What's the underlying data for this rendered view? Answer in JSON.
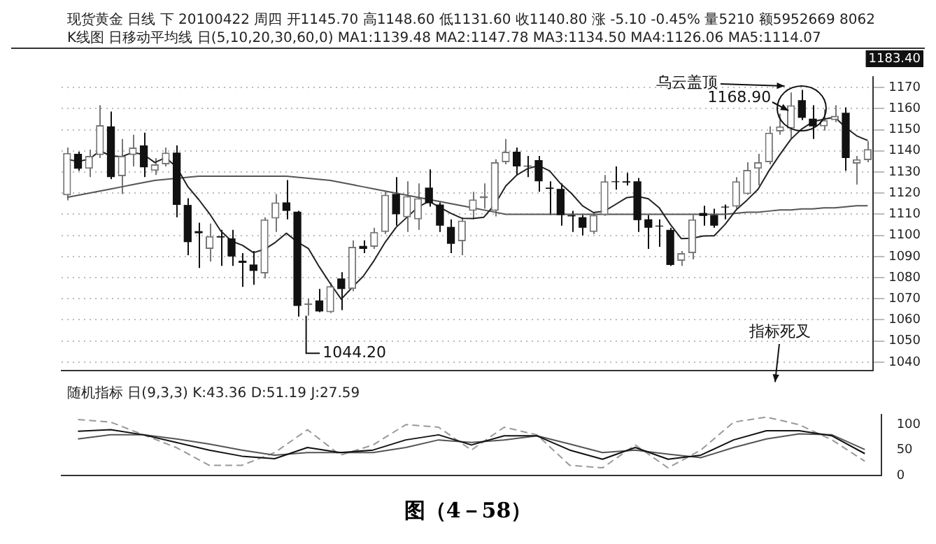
{
  "chart_data": [
    {
      "type": "candlestick",
      "title": "现货黄金 日线 下 20100422 周四 开1145.70 高1148.60 低1131.60 收1140.80 涨 -5.10 -0.45% 量5210 额5952669 8062",
      "subtitle": "K线图 日移动平均线 日(5,10,20,30,60,0) MA1:1139.48 MA2:1147.78 MA3:1134.50 MA4:1126.06 MA5:1114.07",
      "colors": [
        "#777777",
        "#111111",
        "#777777",
        "#777777",
        "#111111",
        "#777777",
        "#777777",
        "#111111",
        "#777777",
        "#777777",
        "#111111",
        "#111111",
        "#111111",
        "#777777",
        "#111111",
        "#111111",
        "#111111",
        "#111111",
        "#777777",
        "#777777",
        "#111111",
        "#111111",
        "#777777",
        "#111111",
        "#777777",
        "#111111",
        "#777777",
        "#111111",
        "#777777",
        "#777777",
        "#111111",
        "#777777",
        "#777777",
        "#111111",
        "#111111",
        "#111111",
        "#777777",
        "#777777",
        "#777777",
        "#777777",
        "#777777",
        "#111111",
        "#111111",
        "#111111",
        "#111111",
        "#111111",
        "#111111",
        "#111111",
        "#777777",
        "#777777",
        "#111111",
        "#111111",
        "#111111",
        "#111111",
        "#111111",
        "#111111",
        "#777777",
        "#777777",
        "#111111",
        "#111111",
        "#111111",
        "#777777",
        "#777777",
        "#777777",
        "#777777",
        "#777777",
        "#777777",
        "#111111",
        "#111111",
        "#777777",
        "#777777",
        "#111111",
        "#777777",
        "#777777"
      ],
      "categories": [
        null,
        null,
        null,
        null,
        null,
        null,
        null,
        null,
        null,
        null,
        null,
        null,
        null,
        null,
        null,
        null,
        null,
        null,
        null,
        null,
        null,
        null,
        null,
        null,
        null,
        null,
        null,
        null,
        null,
        null,
        null,
        null,
        null,
        null,
        null,
        null,
        null,
        null,
        null,
        null,
        null,
        null,
        null,
        null,
        null,
        null,
        null,
        null,
        null,
        null,
        null,
        null,
        null,
        null,
        null,
        null,
        null,
        null,
        null,
        null,
        null,
        null,
        null,
        null,
        null,
        null,
        null,
        null,
        null,
        null,
        null,
        null,
        null,
        null
      ],
      "ohlc": [
        [
          1119,
          1141.6,
          1116.6,
          1139
        ],
        [
          1138.6,
          1139.6,
          1130.6,
          1131.6
        ],
        [
          1131.6,
          1140.6,
          1127.6,
          1137.6
        ],
        [
          1138,
          1161.6,
          1136.6,
          1152.2
        ],
        [
          1151.6,
          1158.6,
          1126.6,
          1127.6
        ],
        [
          1128,
          1145.6,
          1119.6,
          1137.6
        ],
        [
          1138,
          1147.6,
          1132.6,
          1141.6
        ],
        [
          1142.6,
          1148.6,
          1127.6,
          1132.2
        ],
        [
          1130.6,
          1136.6,
          1128.6,
          1133.6
        ],
        [
          1133.6,
          1141.6,
          1132.6,
          1139.2
        ],
        [
          1139.2,
          1142.6,
          1108.6,
          1114.4
        ],
        [
          1114.4,
          1117.6,
          1090.6,
          1096.8
        ],
        [
          1102,
          1106,
          1084.6,
          1101
        ],
        [
          1093.6,
          1105.6,
          1087.6,
          1099.6
        ],
        [
          1099.6,
          1102.6,
          1085.6,
          1099
        ],
        [
          1098.6,
          1102.6,
          1085.6,
          1090
        ],
        [
          1088,
          1091.6,
          1075.6,
          1087
        ],
        [
          1086.2,
          1092.6,
          1076.6,
          1083.2
        ],
        [
          1082,
          1108.6,
          1079.6,
          1107.6
        ],
        [
          1108,
          1119.6,
          1101.6,
          1115.6
        ],
        [
          1115.6,
          1126.2,
          1107.6,
          1111.6
        ],
        [
          1111.2,
          1111.6,
          1061.6,
          1066.6
        ],
        [
          1067,
          1070,
          1062,
          1067.8
        ],
        [
          1069.2,
          1074.6,
          1063.6,
          1064
        ],
        [
          1063.6,
          1077.6,
          1063.2,
          1076
        ],
        [
          1079.6,
          1082.6,
          1064.6,
          1074.6
        ],
        [
          1074.6,
          1097.6,
          1073.6,
          1094.6
        ],
        [
          1095,
          1097.6,
          1091.6,
          1093.6
        ],
        [
          1094.6,
          1103.6,
          1093.6,
          1101.6
        ],
        [
          1101.6,
          1120.6,
          1100.6,
          1119.2
        ],
        [
          1119.6,
          1127.6,
          1104.6,
          1110
        ],
        [
          1108.6,
          1125.6,
          1101.6,
          1118.6
        ],
        [
          1107.6,
          1124.6,
          1102.6,
          1117.6
        ],
        [
          1122.6,
          1131.2,
          1113.6,
          1115.2
        ],
        [
          1114.6,
          1115.6,
          1101.6,
          1104.6
        ],
        [
          1104,
          1107.6,
          1091.6,
          1096
        ],
        [
          1097.2,
          1108.6,
          1090.6,
          1107
        ],
        [
          1111.6,
          1120.6,
          1107.6,
          1117
        ],
        [
          1117.6,
          1124.6,
          1112.6,
          1118.6
        ],
        [
          1111.6,
          1136,
          1109,
          1134.6
        ],
        [
          1134.6,
          1145.6,
          1133.6,
          1139.6
        ],
        [
          1139.6,
          1141.6,
          1128.6,
          1132.6
        ],
        [
          1133,
          1137.6,
          1127.6,
          1132.6
        ],
        [
          1135.6,
          1137.6,
          1120.6,
          1125.6
        ],
        [
          1122.6,
          1125.6,
          1109.6,
          1122
        ],
        [
          1122,
          1124.6,
          1104.6,
          1109.6
        ],
        [
          1109.6,
          1111.6,
          1101.6,
          1109
        ],
        [
          1108.6,
          1109.6,
          1100,
          1103.6
        ],
        [
          1101.6,
          1110.6,
          1100.6,
          1109.6
        ],
        [
          1109.6,
          1128.6,
          1109.2,
          1125.6
        ],
        [
          1125.6,
          1132.6,
          1121.6,
          1125.2
        ],
        [
          1125.6,
          1129.6,
          1123.6,
          1125
        ],
        [
          1125.6,
          1127.2,
          1101.6,
          1107.2
        ],
        [
          1107.6,
          1109.6,
          1093.6,
          1103.6
        ],
        [
          1104.6,
          1107.6,
          1094.6,
          1104.2
        ],
        [
          1102.6,
          1103.6,
          1085.6,
          1086
        ],
        [
          1088,
          1092.6,
          1085.6,
          1091.6
        ],
        [
          1091.6,
          1109.6,
          1088.6,
          1107.6
        ],
        [
          1110.6,
          1114,
          1104.6,
          1109.2
        ],
        [
          1109.6,
          1112.6,
          1103.6,
          1104.6
        ],
        [
          1113.6,
          1114.6,
          1107.6,
          1113.2
        ],
        [
          1113.6,
          1127.6,
          1112.6,
          1125.6
        ],
        [
          1119.6,
          1134.6,
          1119.2,
          1131
        ],
        [
          1131.6,
          1138.6,
          1123.6,
          1134.6
        ],
        [
          1134.6,
          1151.6,
          1133.6,
          1148.6
        ],
        [
          1149.2,
          1157.6,
          1147.6,
          1151.6
        ],
        [
          1150.6,
          1167.6,
          1145.6,
          1161.6
        ],
        [
          1164,
          1168.9,
          1154.6,
          1155.6
        ],
        [
          1155.2,
          1161.6,
          1145.6,
          1151.6
        ],
        [
          1151.6,
          1159.6,
          1149.6,
          1154.6
        ],
        [
          1154.6,
          1161.6,
          1153.6,
          1156.6
        ],
        [
          1158,
          1160.6,
          1130.6,
          1136.6
        ],
        [
          1134,
          1137.6,
          1124,
          1136
        ],
        [
          1135.6,
          1144.6,
          1134.6,
          1140.8
        ]
      ],
      "series": [
        {
          "type": "line",
          "color": "#222222",
          "values": [
            1136,
            1135,
            1136,
            1140,
            1137.6,
            1137.3,
            1139.3,
            1138.2,
            1134.5,
            1136.8,
            1132.2,
            1123.2,
            1117,
            1110.2,
            1102.2,
            1097.3,
            1095.3,
            1091.8,
            1093.4,
            1096.7,
            1101,
            1096.9,
            1093.8,
            1085.1,
            1077.2,
            1069.8,
            1075.4,
            1080.6,
            1088.1,
            1096.7,
            1103.8,
            1108.6,
            1113.4,
            1116.1,
            1113.2,
            1110.4,
            1108.1,
            1108,
            1108.6,
            1114.6,
            1123.4,
            1128.5,
            1131.6,
            1133,
            1130.5,
            1124.5,
            1119.8,
            1114,
            1110.8,
            1111.5,
            1114.6,
            1117.8,
            1118.5,
            1117.3,
            1113,
            1105.2,
            1098.5,
            1098.6,
            1099.7,
            1099.8,
            1105.2,
            1112,
            1116.7,
            1121.8,
            1130.6,
            1138.3,
            1145.5,
            1150.4,
            1153.8,
            1155,
            1156,
            1151,
            1147.1,
            1144.9
          ]
        },
        {
          "type": "line",
          "color": "#555555",
          "values": [
            1118,
            1119,
            1120,
            1121,
            1122,
            1123,
            1124,
            1125,
            1126,
            1126.5,
            1127,
            1127.5,
            1128,
            1128,
            1128,
            1128,
            1128,
            1128,
            1128,
            1128,
            1128,
            1127.5,
            1127,
            1126.5,
            1126,
            1125,
            1124,
            1123,
            1122,
            1121,
            1120,
            1119,
            1118,
            1117,
            1116,
            1115,
            1114,
            1113,
            1112,
            1111,
            1110,
            1110,
            1110,
            1110,
            1110,
            1110,
            1110,
            1110,
            1110,
            1110,
            1110,
            1110,
            1110,
            1110,
            1110,
            1110,
            1110,
            1110,
            1110,
            1110,
            1110,
            1110.5,
            1111,
            1111,
            1111.5,
            1112,
            1112,
            1112.5,
            1112.5,
            1113,
            1113,
            1113.5,
            1114,
            1114
          ]
        }
      ],
      "ylim": [
        1036,
        1175
      ],
      "yticks": [
        1040,
        1050,
        1060,
        1070,
        1080,
        1090,
        1100,
        1110,
        1120,
        1130,
        1140,
        1150,
        1160,
        1170
      ],
      "grid": "y",
      "legend": false,
      "marker": "none",
      "annotations": [
        "乌云盖顶",
        "1168.90",
        "1044.20",
        "指标死叉",
        "1183.40"
      ]
    },
    {
      "type": "line",
      "title": "随机指标 日(9,3,3) K:43.36 D:51.19 J:27.59",
      "categories": [
        null,
        null,
        null,
        null,
        null,
        null,
        null,
        null,
        null,
        null,
        null,
        null,
        null,
        null,
        null,
        null,
        null,
        null,
        null,
        null,
        null,
        null,
        null,
        null,
        null
      ],
      "series": [
        {
          "color": "#111111",
          "values": [
            87,
            90,
            80,
            65,
            50,
            38,
            33,
            55,
            45,
            50,
            70,
            80,
            60,
            78,
            78,
            50,
            32,
            55,
            32,
            40,
            70,
            88,
            88,
            78,
            43
          ]
        },
        {
          "color": "#555555",
          "values": [
            72,
            80,
            80,
            72,
            62,
            50,
            40,
            45,
            45,
            45,
            55,
            70,
            65,
            70,
            78,
            62,
            45,
            50,
            42,
            35,
            55,
            72,
            82,
            80,
            51
          ]
        },
        {
          "color": "#999999",
          "line_style": "dashed",
          "values": [
            110,
            105,
            80,
            55,
            20,
            20,
            45,
            90,
            40,
            60,
            100,
            95,
            50,
            95,
            80,
            20,
            15,
            60,
            15,
            50,
            105,
            115,
            100,
            70,
            28
          ]
        }
      ],
      "ylim": [
        0,
        120
      ],
      "yticks": [
        0,
        50,
        100
      ],
      "grid": false,
      "legend": false,
      "marker": "none",
      "line_style": "solid",
      "annotations": [
        "图（4－58）"
      ]
    }
  ]
}
